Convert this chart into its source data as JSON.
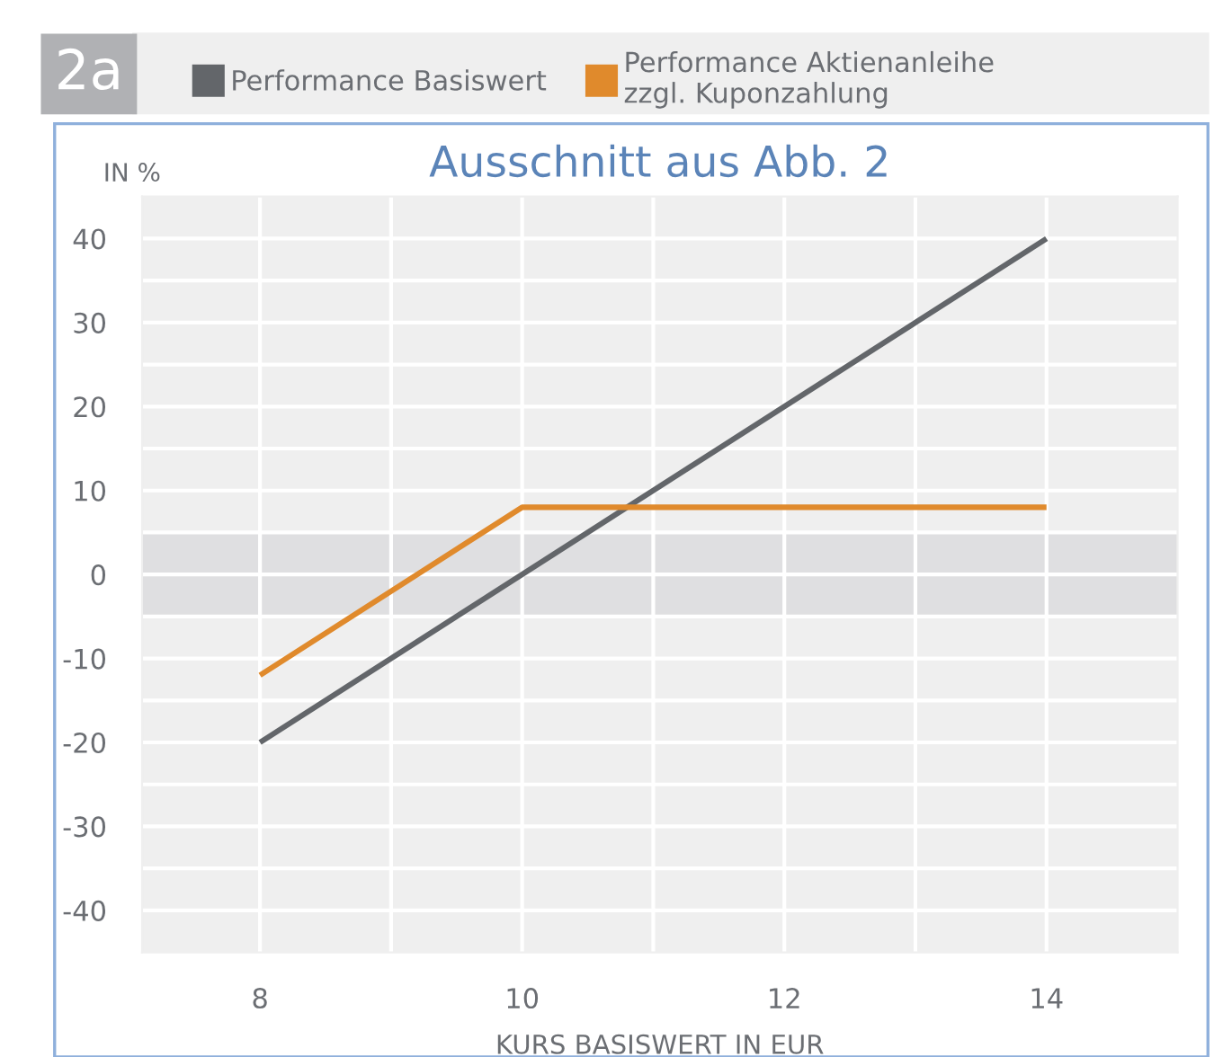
{
  "chart_data": {
    "type": "line",
    "title": "Ausschnitt aus Abb. 2",
    "xlabel": "KURS BASISWERT IN EUR",
    "ylabel": "IN %",
    "annotations": [
      "2a"
    ],
    "series": [
      {
        "name": "Performance Basiswert",
        "color": "#63666a",
        "x": [
          8,
          14
        ],
        "values": [
          -20,
          40
        ]
      },
      {
        "name": "Performance Aktienanleihe\nzzgl. Kuponzahlung",
        "color": "#e08a2c",
        "x": [
          8,
          10,
          14
        ],
        "values": [
          -12,
          8,
          8
        ]
      }
    ],
    "xlim": [
      7.1,
      15.0
    ],
    "xticks": [
      8,
      {
        "value": 9,
        "label": null
      },
      10,
      {
        "value": 11,
        "label": null
      },
      12,
      {
        "value": 13,
        "label": null
      },
      14
    ],
    "ylim": [
      -45,
      45
    ],
    "yticks": [
      -40,
      {
        "value": -35,
        "label": null
      },
      -30,
      {
        "value": -25,
        "label": null
      },
      -20,
      {
        "value": -15,
        "label": null
      },
      -10,
      {
        "value": -5,
        "label": null
      },
      0,
      {
        "value": 5,
        "label": null
      },
      10,
      {
        "value": 15,
        "label": null
      },
      20,
      {
        "value": 25,
        "label": null
      },
      30,
      {
        "value": 35,
        "label": null
      },
      40
    ],
    "bands": [
      {
        "axis": "y",
        "from": -5,
        "to": 5,
        "color": "#dfdfe1"
      }
    ],
    "grid": true,
    "legend": "top",
    "marker": "none",
    "line_style": "solid"
  }
}
